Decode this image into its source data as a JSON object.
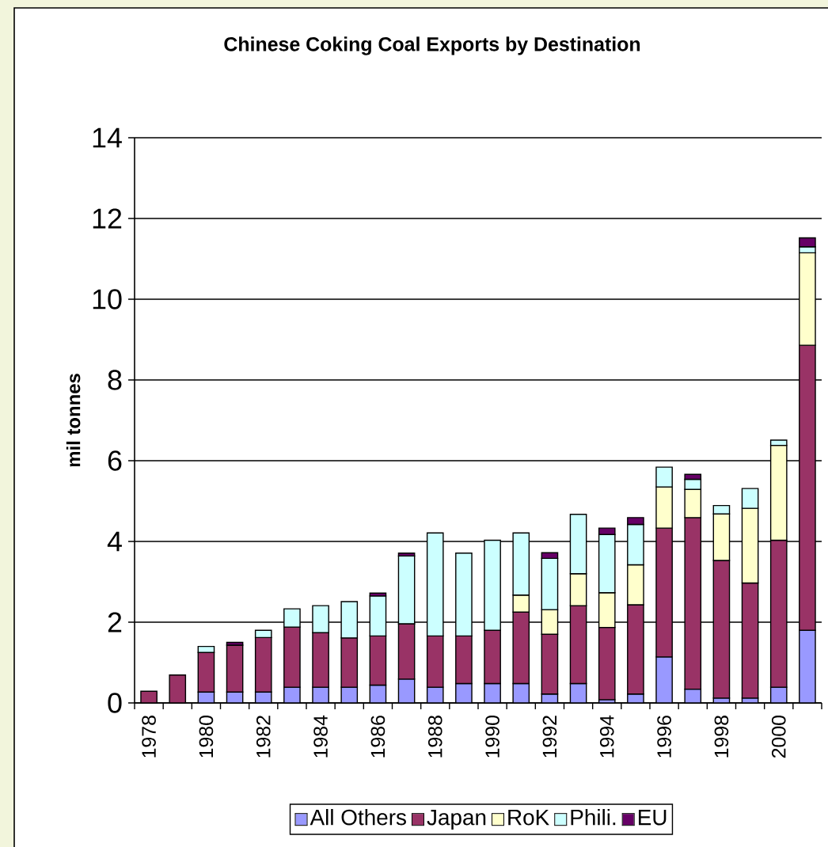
{
  "chart_data": {
    "type": "bar",
    "title": "Chinese Coking Coal Exports by Destination",
    "ylabel": "mil tonnes",
    "categories": [
      "1978",
      null,
      "1980",
      null,
      "1982",
      null,
      "1984",
      null,
      "1986",
      null,
      "1988",
      null,
      "1990",
      null,
      "1992",
      null,
      "1994",
      null,
      "1996",
      null,
      "1998",
      null,
      "2000",
      null
    ],
    "stacked": true,
    "ylim": [
      0,
      14
    ],
    "yticks": [
      0,
      2,
      4,
      6,
      8,
      10,
      12,
      14
    ],
    "grid": "y",
    "legend": "bottom",
    "series": [
      {
        "name": "All Others",
        "color": "#9999ff",
        "values": [
          null,
          null,
          0.27,
          0.27,
          0.27,
          0.39,
          0.39,
          0.39,
          0.44,
          0.59,
          0.39,
          0.48,
          0.48,
          0.48,
          0.22,
          0.48,
          0.08,
          0.22,
          1.14,
          0.34,
          0.12,
          0.12,
          0.39,
          1.8
        ]
      },
      {
        "name": "Japan",
        "color": "#993366",
        "values": [
          0.29,
          0.69,
          0.98,
          1.16,
          1.35,
          1.49,
          1.35,
          1.22,
          1.22,
          1.37,
          1.27,
          1.18,
          1.32,
          1.77,
          1.48,
          1.93,
          1.79,
          2.21,
          3.19,
          4.25,
          3.41,
          2.85,
          3.64,
          7.06
        ]
      },
      {
        "name": "RoK",
        "color": "#ffffcc",
        "values": [
          null,
          null,
          null,
          null,
          null,
          null,
          null,
          null,
          null,
          null,
          null,
          null,
          null,
          0.42,
          0.61,
          0.79,
          0.86,
          0.99,
          1.02,
          0.7,
          1.15,
          1.85,
          2.35,
          2.29
        ]
      },
      {
        "name": "Phili.",
        "color": "#ccffff",
        "values": [
          null,
          null,
          0.15,
          null,
          0.18,
          0.45,
          0.67,
          0.9,
          0.99,
          1.68,
          2.55,
          2.05,
          2.23,
          1.54,
          1.27,
          1.47,
          1.44,
          1.0,
          0.49,
          0.25,
          0.21,
          0.49,
          0.13,
          0.15
        ]
      },
      {
        "name": "EU",
        "color": "#660066",
        "values": [
          null,
          null,
          null,
          0.07,
          null,
          null,
          null,
          null,
          0.07,
          0.07,
          null,
          null,
          null,
          null,
          0.14,
          null,
          0.16,
          0.17,
          null,
          0.12,
          null,
          null,
          null,
          0.22
        ]
      }
    ]
  }
}
